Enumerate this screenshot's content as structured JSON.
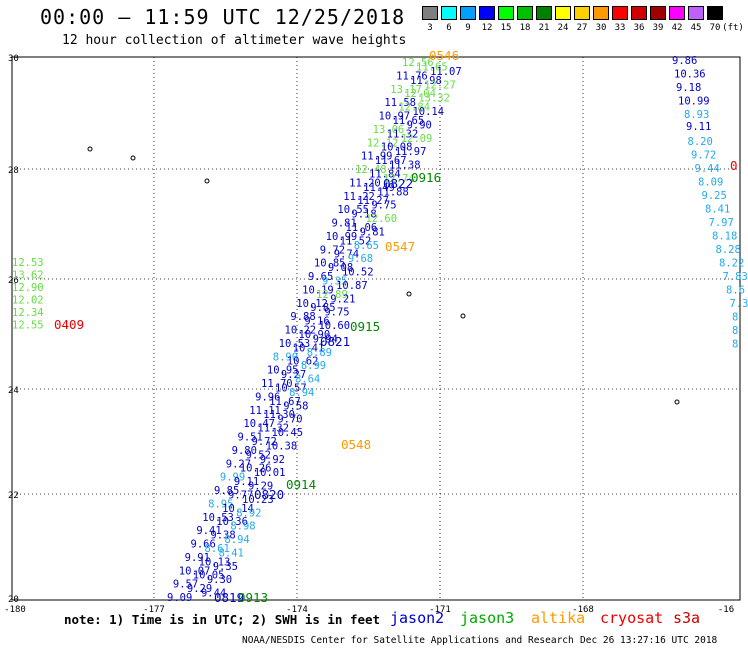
{
  "header": {
    "title": "00:00 – 11:59 UTC 12/25/2018",
    "subtitle": "12 hour collection of altimeter wave heights"
  },
  "color_scale": {
    "unit_label": "(ft)",
    "bins": [
      {
        "label": "3",
        "color": "#7f7f7f"
      },
      {
        "label": "6",
        "color": "#00ffff"
      },
      {
        "label": "9",
        "color": "#00a0ff"
      },
      {
        "label": "12",
        "color": "#0000ff"
      },
      {
        "label": "15",
        "color": "#00ff00"
      },
      {
        "label": "18",
        "color": "#00c000"
      },
      {
        "label": "21",
        "color": "#008000"
      },
      {
        "label": "24",
        "color": "#ffff00"
      },
      {
        "label": "27",
        "color": "#ffd000"
      },
      {
        "label": "30",
        "color": "#ff9900"
      },
      {
        "label": "33",
        "color": "#ff0000"
      },
      {
        "label": "36",
        "color": "#d00000"
      },
      {
        "label": "39",
        "color": "#a00000"
      },
      {
        "label": "42",
        "color": "#ff00ff"
      },
      {
        "label": "45",
        "color": "#c060ff"
      },
      {
        "label": "70",
        "color": "#000000"
      }
    ]
  },
  "axes": {
    "lat_labels": [
      "30",
      "28",
      "26",
      "24",
      "22",
      "20"
    ],
    "lon_labels": [
      "-180",
      "-177",
      "-174",
      "-171",
      "-168",
      "-16"
    ]
  },
  "colors": {
    "jason2": "#0000cc",
    "jason3": "#00aa00",
    "altika": "#ff9900",
    "cryosat": "#ee0000",
    "s3a": "#cc0000",
    "green_values": "#66dd44",
    "cyan_values": "#22aaee",
    "dark_green": "#008800"
  },
  "map_data": {
    "times": [
      {
        "text": "0546",
        "color": "orange"
      },
      {
        "text": "0916",
        "color": "dgreen"
      },
      {
        "text": "0822",
        "color": "blue"
      },
      {
        "text": "0547",
        "color": "orange"
      },
      {
        "text": "0915",
        "color": "dgreen"
      },
      {
        "text": "0821",
        "color": "blue"
      },
      {
        "text": "0548",
        "color": "orange"
      },
      {
        "text": "0914",
        "color": "dgreen"
      },
      {
        "text": "0820",
        "color": "blue"
      },
      {
        "text": "0819",
        "color": "blue"
      },
      {
        "text": "0913",
        "color": "dgreen"
      },
      {
        "text": "0409",
        "color": "red"
      },
      {
        "text": "0",
        "color": "red"
      }
    ],
    "track_left_green": [
      "12.53",
      "13.62",
      "12.90",
      "12.02",
      "12.34",
      "12.55"
    ],
    "track_right_blue": [
      "9.86",
      "10.36",
      "9.18",
      "10.99"
    ],
    "track_right_cyan": [
      "8.93",
      "8.20",
      "9.72",
      "9.44",
      "8.09",
      "9.25",
      "8.41",
      "7.97",
      "8.18",
      "8.28",
      "8.22",
      "7.83",
      "8.6",
      "7.3",
      "8",
      "8",
      "8"
    ],
    "track_right_navy": [
      "9.11"
    ],
    "track_main": [
      {
        "v": "12.56",
        "c": "green"
      },
      {
        "v": "11.65",
        "c": "green"
      },
      {
        "v": "11.07",
        "c": "blue"
      },
      {
        "v": "11.76",
        "c": "blue"
      },
      {
        "v": "11.98",
        "c": "blue"
      },
      {
        "v": "12.27",
        "c": "green"
      },
      {
        "v": "13.17",
        "c": "green"
      },
      {
        "v": "12.04",
        "c": "green"
      },
      {
        "v": "13.32",
        "c": "green"
      },
      {
        "v": "11.58",
        "c": "blue"
      },
      {
        "v": "12.84",
        "c": "green"
      },
      {
        "v": "10.14",
        "c": "blue"
      },
      {
        "v": "10.97",
        "c": "blue"
      },
      {
        "v": "11.65",
        "c": "blue"
      },
      {
        "v": "9.90",
        "c": "blue"
      },
      {
        "v": "13.06",
        "c": "green"
      },
      {
        "v": "11.32",
        "c": "blue"
      },
      {
        "v": "12.09",
        "c": "green"
      },
      {
        "v": "12.12",
        "c": "green"
      },
      {
        "v": "10.08",
        "c": "blue"
      },
      {
        "v": "11.97",
        "c": "blue"
      },
      {
        "v": "11.99",
        "c": "blue"
      },
      {
        "v": "11.67",
        "c": "blue"
      },
      {
        "v": "11.38",
        "c": "blue"
      },
      {
        "v": "12.48",
        "c": "green"
      },
      {
        "v": "11.84",
        "c": "blue"
      },
      {
        "v": "12.74",
        "c": "green"
      },
      {
        "v": "11.20",
        "c": "blue"
      },
      {
        "v": "11.49",
        "c": "blue"
      },
      {
        "v": "11.88",
        "c": "blue"
      },
      {
        "v": "11.22",
        "c": "blue"
      },
      {
        "v": "11.27",
        "c": "blue"
      },
      {
        "v": "9.75",
        "c": "blue"
      },
      {
        "v": "10.55",
        "c": "blue"
      },
      {
        "v": "9.18",
        "c": "blue"
      },
      {
        "v": "12.60",
        "c": "green"
      },
      {
        "v": "9.81",
        "c": "blue"
      },
      {
        "v": "11.06",
        "c": "blue"
      },
      {
        "v": "9.81",
        "c": "blue"
      },
      {
        "v": "10.99",
        "c": "blue"
      },
      {
        "v": "11.52",
        "c": "blue"
      },
      {
        "v": "8.65",
        "c": "cyan"
      },
      {
        "v": "9.72",
        "c": "blue"
      },
      {
        "v": "9.74",
        "c": "blue"
      },
      {
        "v": "9.68",
        "c": "cyan"
      },
      {
        "v": "10.85",
        "c": "blue"
      },
      {
        "v": "9.08",
        "c": "blue"
      },
      {
        "v": "10.52",
        "c": "blue"
      },
      {
        "v": "9.65",
        "c": "blue"
      },
      {
        "v": "9.35",
        "c": "cyan"
      },
      {
        "v": "10.87",
        "c": "blue"
      },
      {
        "v": "10.19",
        "c": "blue"
      },
      {
        "v": "12.89",
        "c": "green"
      },
      {
        "v": "9.21",
        "c": "blue"
      },
      {
        "v": "10.12",
        "c": "blue"
      },
      {
        "v": "9.85",
        "c": "blue"
      },
      {
        "v": "9.75",
        "c": "blue"
      },
      {
        "v": "9.88",
        "c": "blue"
      },
      {
        "v": "9.16",
        "c": "blue"
      },
      {
        "v": "10.60",
        "c": "blue"
      },
      {
        "v": "10.22",
        "c": "blue"
      },
      {
        "v": "10.90",
        "c": "blue"
      },
      {
        "v": "9.94",
        "c": "blue"
      },
      {
        "v": "10.53",
        "c": "blue"
      },
      {
        "v": "10.41",
        "c": "blue"
      },
      {
        "v": "8.89",
        "c": "cyan"
      },
      {
        "v": "8.90",
        "c": "cyan"
      },
      {
        "v": "10.62",
        "c": "blue"
      },
      {
        "v": "8.99",
        "c": "cyan"
      },
      {
        "v": "10.95",
        "c": "blue"
      },
      {
        "v": "9.27",
        "c": "blue"
      },
      {
        "v": "8.64",
        "c": "cyan"
      },
      {
        "v": "11.70",
        "c": "blue"
      },
      {
        "v": "10.57",
        "c": "blue"
      },
      {
        "v": "8.94",
        "c": "cyan"
      },
      {
        "v": "9.96",
        "c": "blue"
      },
      {
        "v": "11.67",
        "c": "blue"
      },
      {
        "v": "9.58",
        "c": "blue"
      },
      {
        "v": "11.11",
        "c": "blue"
      },
      {
        "v": "11.30",
        "c": "blue"
      },
      {
        "v": "9.70",
        "c": "blue"
      },
      {
        "v": "10.47",
        "c": "blue"
      },
      {
        "v": "11.32",
        "c": "blue"
      },
      {
        "v": "10.45",
        "c": "blue"
      },
      {
        "v": "9.51",
        "c": "blue"
      },
      {
        "v": "9.72",
        "c": "blue"
      },
      {
        "v": "10.38",
        "c": "blue"
      },
      {
        "v": "9.80",
        "c": "blue"
      },
      {
        "v": "9.52",
        "c": "blue"
      },
      {
        "v": "9.92",
        "c": "blue"
      },
      {
        "v": "9.27",
        "c": "blue"
      },
      {
        "v": "10.26",
        "c": "blue"
      },
      {
        "v": "10.01",
        "c": "blue"
      },
      {
        "v": "9.99",
        "c": "cyan"
      },
      {
        "v": "9.11",
        "c": "blue"
      },
      {
        "v": "9.29",
        "c": "blue"
      },
      {
        "v": "9.85",
        "c": "blue"
      },
      {
        "v": "9.77",
        "c": "blue"
      },
      {
        "v": "10.23",
        "c": "blue"
      },
      {
        "v": "8.95",
        "c": "cyan"
      },
      {
        "v": "10.14",
        "c": "blue"
      },
      {
        "v": "8.92",
        "c": "cyan"
      },
      {
        "v": "10.53",
        "c": "blue"
      },
      {
        "v": "10.36",
        "c": "blue"
      },
      {
        "v": "8.98",
        "c": "cyan"
      },
      {
        "v": "9.41",
        "c": "blue"
      },
      {
        "v": "9.38",
        "c": "blue"
      },
      {
        "v": "8.94",
        "c": "cyan"
      },
      {
        "v": "9.66",
        "c": "blue"
      },
      {
        "v": "8.61",
        "c": "cyan"
      },
      {
        "v": "8.41",
        "c": "cyan"
      },
      {
        "v": "9.91",
        "c": "blue"
      },
      {
        "v": "10.13",
        "c": "blue"
      },
      {
        "v": "9.35",
        "c": "blue"
      },
      {
        "v": "10.07",
        "c": "blue"
      },
      {
        "v": "10.05",
        "c": "blue"
      },
      {
        "v": "9.30",
        "c": "blue"
      },
      {
        "v": "9.57",
        "c": "blue"
      },
      {
        "v": "9.29",
        "c": "blue"
      },
      {
        "v": "9.44",
        "c": "blue"
      },
      {
        "v": "9.09",
        "c": "blue"
      }
    ]
  },
  "footer": {
    "note": "note: 1) Time is in UTC; 2) SWH is in feet",
    "satellites": [
      "jason2",
      "jason3",
      "altika",
      "cryosat",
      "s3a"
    ],
    "credit": "NOAA/NESDIS Center for Satellite Applications and Research",
    "timestamp": "Dec 26 13:27:16 UTC 2018"
  }
}
